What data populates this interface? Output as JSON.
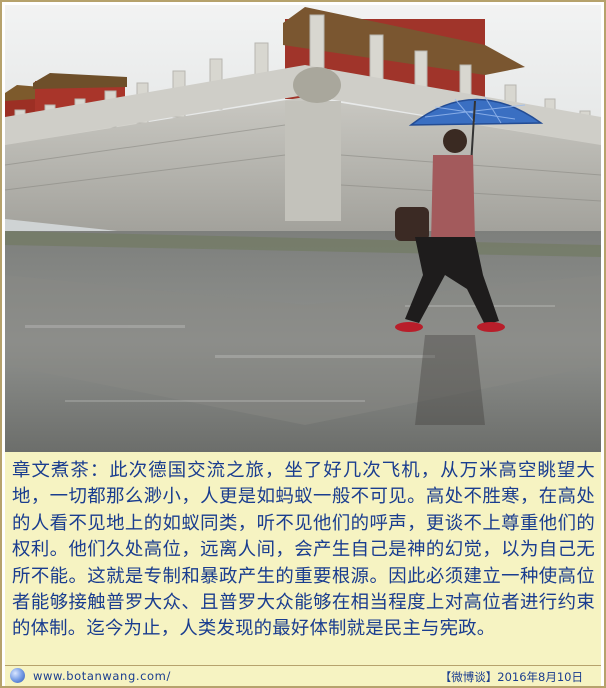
{
  "photo": {
    "alt_icon": "forbidden-city-rain-photo"
  },
  "caption": {
    "text": "章文煮茶：此次德国交流之旅，坐了好几次飞机，从万米高空眺望大地，一切都那么渺小，人更是如蚂蚁一般不可见。高处不胜寒，在高处的人看不见地上的如蚁同类，听不见他们的呼声，更谈不上尊重他们的权利。他们久处高位，远离人间，会产生自己是神的幻觉，以为自己无所不能。这就是专制和暴政产生的重要根源。因此必须建立一种使高位者能够接触普罗大众、且普罗大众能够在相当程度上对高位者进行约束的体制。迄今为止，人类发现的最好体制就是民主与宪政。"
  },
  "footer": {
    "url": "www.botanwang.com/",
    "stamp": "【微博谈】2016年8月10日"
  },
  "colors": {
    "caption_bg": "#f6f3c2",
    "text": "#1a3d8f",
    "border": "#b6a26c"
  }
}
